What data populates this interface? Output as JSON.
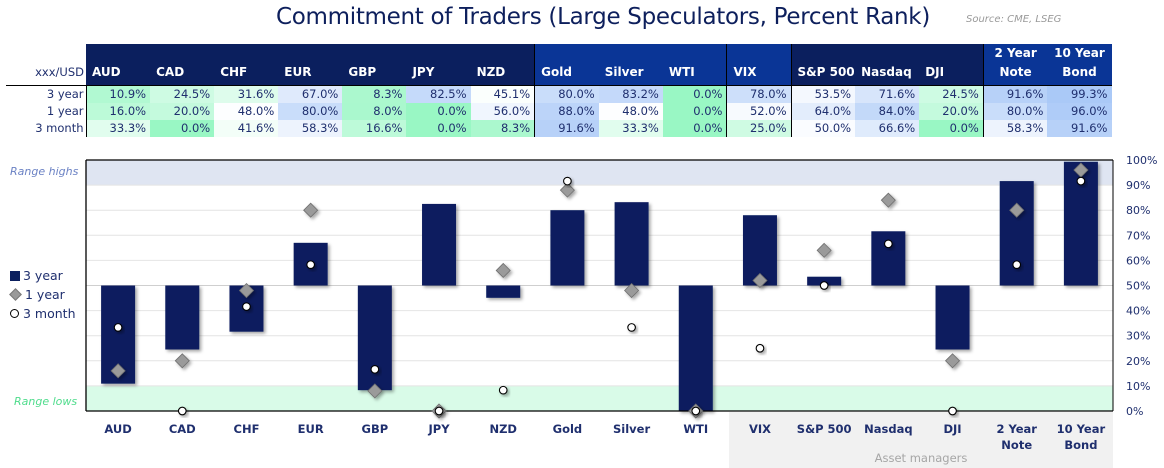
{
  "header": {
    "title": "Commitment of Traders (Large Speculators, Percent Rank)",
    "source": "Source: CME, LSEG"
  },
  "table": {
    "corner_label": "xxx/USD",
    "columns": [
      "AUD",
      "CAD",
      "CHF",
      "EUR",
      "GBP",
      "JPY",
      "NZD",
      "Gold",
      "Silver",
      "WTI",
      "VIX",
      "S&P 500",
      "Nasdaq",
      "DJI",
      "2 Year Note",
      "10 Year Bond"
    ],
    "column_lines": [
      [
        "AUD"
      ],
      [
        "CAD"
      ],
      [
        "CHF"
      ],
      [
        "EUR"
      ],
      [
        "GBP"
      ],
      [
        "JPY"
      ],
      [
        "NZD"
      ],
      [
        "Gold"
      ],
      [
        "Silver"
      ],
      [
        "WTI"
      ],
      [
        "VIX"
      ],
      [
        "S&P 500"
      ],
      [
        "Nasdaq"
      ],
      [
        "DJI"
      ],
      [
        "2 Year",
        "Note"
      ],
      [
        "10 Year",
        "Bond"
      ]
    ],
    "column_groups": [
      "cur",
      "cur",
      "cur",
      "cur",
      "cur",
      "cur",
      "cur",
      "com",
      "com",
      "com",
      "vix",
      "eq",
      "eq",
      "eq",
      "bond",
      "bond"
    ],
    "rows": [
      {
        "label": "3 year",
        "values": [
          "10.9%",
          "24.5%",
          "31.6%",
          "67.0%",
          "8.3%",
          "82.5%",
          "45.1%",
          "80.0%",
          "83.2%",
          "0.0%",
          "78.0%",
          "53.5%",
          "71.6%",
          "24.5%",
          "91.6%",
          "99.3%"
        ]
      },
      {
        "label": "1 year",
        "values": [
          "16.0%",
          "20.0%",
          "48.0%",
          "80.0%",
          "8.0%",
          "0.0%",
          "56.0%",
          "88.0%",
          "48.0%",
          "0.0%",
          "52.0%",
          "64.0%",
          "84.0%",
          "20.0%",
          "80.0%",
          "96.0%"
        ]
      },
      {
        "label": "3 month",
        "values": [
          "33.3%",
          "0.0%",
          "41.6%",
          "58.3%",
          "16.6%",
          "0.0%",
          "8.3%",
          "91.6%",
          "33.3%",
          "0.0%",
          "25.0%",
          "50.0%",
          "66.6%",
          "0.0%",
          "58.3%",
          "91.6%"
        ]
      }
    ]
  },
  "chart_data": {
    "type": "bar",
    "title": "Commitment of Traders (Large Speculators, Percent Rank)",
    "categories": [
      "AUD",
      "CAD",
      "CHF",
      "EUR",
      "GBP",
      "JPY",
      "NZD",
      "Gold",
      "Silver",
      "WTI",
      "VIX",
      "S&P 500",
      "Nasdaq",
      "DJI",
      "2 Year Note",
      "10 Year Bond"
    ],
    "category_lines": [
      [
        "AUD"
      ],
      [
        "CAD"
      ],
      [
        "CHF"
      ],
      [
        "EUR"
      ],
      [
        "GBP"
      ],
      [
        "JPY"
      ],
      [
        "NZD"
      ],
      [
        "Gold"
      ],
      [
        "Silver"
      ],
      [
        "WTI"
      ],
      [
        "VIX"
      ],
      [
        "S&P 500"
      ],
      [
        "Nasdaq"
      ],
      [
        "DJI"
      ],
      [
        "2 Year",
        "Note"
      ],
      [
        "10 Year",
        "Bond"
      ]
    ],
    "bar_baseline": 50,
    "series": [
      {
        "name": "3 year",
        "kind": "bar",
        "values": [
          10.9,
          24.5,
          31.6,
          67.0,
          8.3,
          82.5,
          45.1,
          80.0,
          83.2,
          0.0,
          78.0,
          53.5,
          71.6,
          24.5,
          91.6,
          99.3
        ]
      },
      {
        "name": "1 year",
        "kind": "diamond",
        "values": [
          16.0,
          20.0,
          48.0,
          80.0,
          8.0,
          0.0,
          56.0,
          88.0,
          48.0,
          0.0,
          52.0,
          64.0,
          84.0,
          20.0,
          80.0,
          96.0
        ]
      },
      {
        "name": "3 month",
        "kind": "circle",
        "values": [
          33.3,
          0.0,
          41.6,
          58.3,
          16.6,
          0.0,
          8.3,
          91.6,
          33.3,
          0.0,
          25.0,
          50.0,
          66.6,
          0.0,
          58.3,
          91.6
        ]
      }
    ],
    "ylim": [
      0,
      100
    ],
    "yticks": [
      "0%",
      "10%",
      "20%",
      "30%",
      "40%",
      "50%",
      "60%",
      "70%",
      "80%",
      "90%",
      "100%"
    ],
    "ytick_values": [
      0,
      10,
      20,
      30,
      40,
      50,
      60,
      70,
      80,
      90,
      100
    ],
    "y_axis_side": "right",
    "grid": true,
    "bands": [
      {
        "label": "Range highs",
        "from": 90,
        "to": 100,
        "color": "#dfe5f2"
      },
      {
        "label": "Range lows",
        "from": 0,
        "to": 10,
        "color": "#d9fbe8"
      }
    ],
    "group_annotation": {
      "label": "Asset managers",
      "from_category": "VIX",
      "to_category": "10 Year Bond"
    },
    "legend": [
      "3 year",
      "1 year",
      "3 month"
    ],
    "legend_position": "left",
    "colors": {
      "bar": "#0b1f5e",
      "diamond": "#9a9a9a",
      "circle": "#ffffff"
    }
  },
  "heat_colors": {
    "low": "#99f7c4",
    "mid": "#ffffff",
    "high": "#a9c8f7"
  }
}
